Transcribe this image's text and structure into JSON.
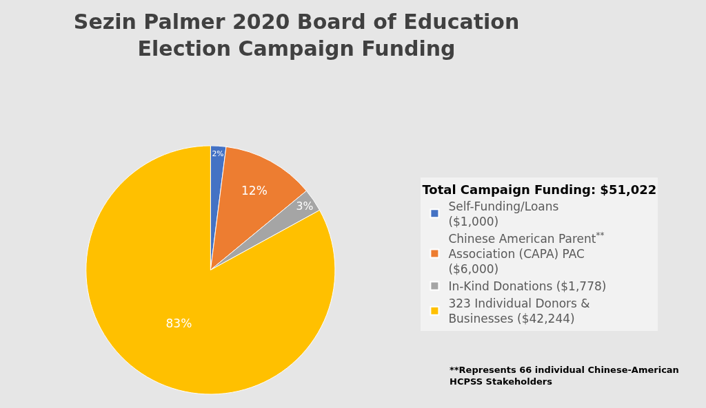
{
  "chart_data": {
    "type": "pie",
    "title": "Sezin Palmer 2020 Board of Education Election Campaign Funding",
    "legend_title": "Total Campaign Funding: $51,022",
    "categories": [
      "Self-Funding/Loans ($1,000)",
      "Chinese American Parent$^{**}$ Association (CAPA) PAC ($6,000)",
      "In-Kind Donations ($1,778)",
      "323 Individual Donors & Businesses ($42,244)"
    ],
    "values": [
      2,
      12,
      3,
      83
    ],
    "value_labels": [
      "2%",
      "12%",
      "3%",
      "83%"
    ],
    "colors": [
      "#4472c4",
      "#ed7d31",
      "#a5a5a5",
      "#ffc000"
    ],
    "legend": "right",
    "annotations": [
      "**Represents 66 individual Chinese-American HCPSS Stakeholders"
    ]
  }
}
